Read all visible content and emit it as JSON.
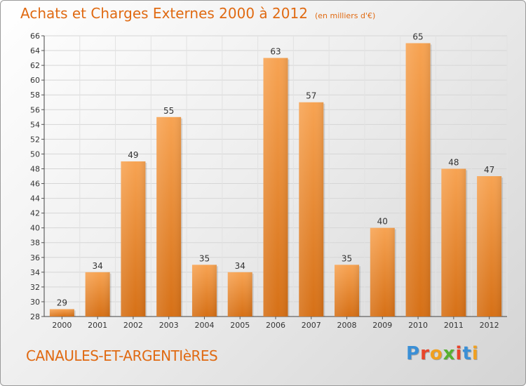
{
  "header": {
    "title": "Achats et Charges Externes 2000 à 2012",
    "subtitle": "(en milliers d'€)"
  },
  "footer": {
    "commune": "CANAULES-ET-ARGENTIèRES",
    "logo_text": "Proxiti"
  },
  "chart_data": {
    "type": "bar",
    "title": "Achats et Charges Externes 2000 à 2012",
    "subtitle": "(en milliers d'€)",
    "categories": [
      "2000",
      "2001",
      "2002",
      "2003",
      "2004",
      "2005",
      "2006",
      "2007",
      "2008",
      "2009",
      "2010",
      "2011",
      "2012"
    ],
    "values": [
      29,
      34,
      49,
      55,
      35,
      34,
      63,
      57,
      35,
      40,
      65,
      48,
      47
    ],
    "ylim": [
      28,
      66
    ],
    "yticks": [
      28,
      30,
      32,
      34,
      36,
      38,
      40,
      42,
      44,
      46,
      48,
      50,
      52,
      54,
      56,
      58,
      60,
      62,
      64,
      66
    ],
    "grid": true,
    "bar_color": "#f0923a",
    "bar_color_dark": "#d87420"
  }
}
